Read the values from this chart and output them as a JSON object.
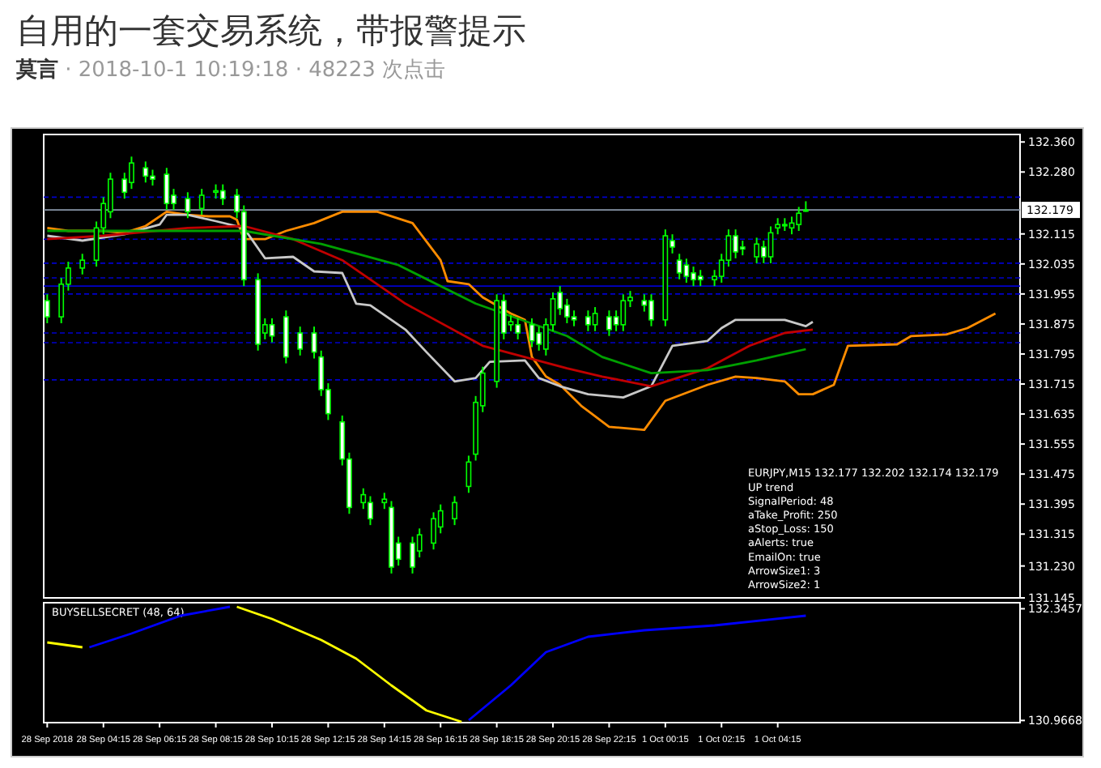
{
  "chart_data": [
    {
      "type": "candlestick",
      "title": "自用的一套交易系统，带报警提示",
      "subtitle": "**莫言** · 2018-10-1 10:19:18 · 48223 次点击",
      "color": "#00ff00",
      "tick_labels": "y",
      "annotations": [
        "EURJPY,M15  132.177 132.202 132.174 132.179",
        "UP trend",
        "SignalPeriod: 48",
        "aTake_Profit: 250",
        "aStop_Loss: 150",
        "aAlerts: true",
        "EmailOn: true",
        "ArrowSize1: 3",
        "ArrowSize2: 1"
      ],
      "ylim": [
        131.145,
        132.38
      ],
      "yticks": [
        {
          "value": 132.36,
          "label": "132.360"
        },
        {
          "value": 132.28,
          "label": "132.280"
        },
        {
          "value": 132.115,
          "label": "132.115"
        },
        {
          "value": 132.035,
          "label": "132.035"
        },
        {
          "value": 131.955,
          "label": "131.955"
        },
        {
          "value": 131.875,
          "label": "131.875"
        },
        {
          "value": 131.795,
          "label": "131.795"
        },
        {
          "value": 131.715,
          "label": "131.715"
        },
        {
          "value": 131.635,
          "label": "131.635"
        },
        {
          "value": 131.555,
          "label": "131.555"
        },
        {
          "value": 131.475,
          "label": "131.475"
        },
        {
          "value": 131.395,
          "label": "131.395"
        },
        {
          "value": 131.315,
          "label": "131.315"
        },
        {
          "value": 131.23,
          "label": "131.230"
        },
        {
          "value": 131.145,
          "label": "131.145"
        }
      ],
      "categories": [
        null,
        null,
        null,
        null,
        null,
        null,
        null,
        null,
        null,
        null,
        null,
        null,
        null,
        null,
        null,
        null,
        null,
        null,
        null,
        null,
        null,
        null,
        null,
        null,
        null,
        null,
        null,
        null,
        null,
        null,
        null,
        null,
        null,
        null,
        null,
        null,
        null,
        null,
        null,
        null,
        null,
        null,
        null,
        null,
        null,
        null,
        null,
        null,
        null,
        null,
        null,
        null,
        null,
        null,
        null,
        null,
        null,
        null,
        null,
        null,
        null,
        null,
        null,
        null,
        null,
        null,
        null,
        null,
        null,
        null,
        null,
        null,
        null,
        null,
        null,
        null,
        null,
        null,
        null,
        null,
        null,
        null,
        null,
        null,
        null,
        null,
        null,
        null,
        null,
        null,
        null,
        null,
        null,
        null,
        null,
        null,
        null,
        null,
        null,
        null,
        null,
        null,
        null,
        null,
        null,
        null,
        null,
        null,
        null,
        null,
        null,
        null,
        null,
        null,
        null,
        null,
        null,
        null,
        null,
        null,
        null,
        null,
        null,
        null,
        null,
        null,
        null,
        null,
        null,
        null,
        null,
        null,
        null,
        null,
        null,
        null,
        null,
        null,
        null
      ],
      "ohlc": [
        [
          131.937,
          131.954,
          131.877,
          131.894
        ],
        null,
        [
          131.894,
          131.998,
          131.877,
          131.981
        ],
        [
          131.981,
          132.041,
          131.964,
          132.024
        ],
        null,
        [
          132.024,
          132.062,
          132.007,
          132.045
        ],
        null,
        [
          132.045,
          132.148,
          132.028,
          132.131
        ],
        [
          132.131,
          132.213,
          132.114,
          132.196
        ],
        [
          132.174,
          132.278,
          132.157,
          132.261
        ],
        null,
        [
          132.261,
          132.278,
          132.209,
          132.226
        ],
        [
          132.252,
          132.321,
          132.235,
          132.304
        ],
        null,
        [
          132.291,
          132.308,
          132.252,
          132.269
        ],
        [
          132.269,
          132.286,
          132.244,
          132.261
        ],
        null,
        [
          132.274,
          132.291,
          132.179,
          132.196
        ],
        [
          132.218,
          132.235,
          132.179,
          132.196
        ],
        null,
        [
          132.209,
          132.226,
          132.157,
          132.174
        ],
        null,
        [
          132.183,
          132.235,
          132.166,
          132.218
        ],
        null,
        [
          132.226,
          132.247,
          132.209,
          132.23
        ],
        [
          132.23,
          132.247,
          132.192,
          132.209
        ],
        null,
        [
          132.218,
          132.235,
          132.157,
          132.174
        ],
        [
          132.174,
          132.191,
          131.976,
          131.993
        ],
        null,
        [
          131.993,
          132.01,
          131.804,
          131.821
        ],
        [
          131.851,
          131.89,
          131.834,
          131.873
        ],
        [
          131.873,
          131.89,
          131.826,
          131.843
        ],
        null,
        [
          131.894,
          131.911,
          131.77,
          131.787
        ],
        null,
        [
          131.851,
          131.868,
          131.791,
          131.808
        ],
        null,
        [
          131.851,
          131.868,
          131.783,
          131.8
        ],
        [
          131.787,
          131.804,
          131.683,
          131.7
        ],
        [
          131.7,
          131.717,
          131.619,
          131.636
        ],
        null,
        [
          131.614,
          131.631,
          131.498,
          131.515
        ],
        [
          131.515,
          131.532,
          131.369,
          131.386
        ],
        null,
        [
          131.399,
          131.437,
          131.382,
          131.42
        ],
        [
          131.399,
          131.416,
          131.339,
          131.356
        ],
        null,
        [
          131.399,
          131.425,
          131.382,
          131.408
        ],
        [
          131.386,
          131.403,
          131.21,
          131.227
        ],
        [
          131.291,
          131.308,
          131.231,
          131.248
        ],
        null,
        [
          131.291,
          131.308,
          131.21,
          131.227
        ],
        [
          131.27,
          131.33,
          131.253,
          131.313
        ],
        null,
        [
          131.291,
          131.373,
          131.274,
          131.356
        ],
        [
          131.334,
          131.394,
          131.317,
          131.377
        ],
        null,
        [
          131.356,
          131.416,
          131.339,
          131.399
        ],
        null,
        [
          131.442,
          131.524,
          131.425,
          131.507
        ],
        [
          131.528,
          131.683,
          131.511,
          131.666
        ],
        [
          131.657,
          131.761,
          131.64,
          131.744
        ],
        null,
        [
          131.722,
          131.954,
          131.705,
          131.937
        ],
        [
          131.937,
          131.954,
          131.834,
          131.851
        ],
        [
          131.873,
          131.898,
          131.856,
          131.881
        ],
        [
          131.873,
          131.89,
          131.834,
          131.851
        ],
        null,
        [
          131.873,
          131.89,
          131.813,
          131.83
        ],
        [
          131.851,
          131.868,
          131.804,
          131.821
        ],
        [
          131.808,
          131.89,
          131.791,
          131.873
        ],
        [
          131.873,
          131.959,
          131.856,
          131.942
        ],
        [
          131.959,
          131.976,
          131.899,
          131.916
        ],
        [
          131.925,
          131.942,
          131.877,
          131.894
        ],
        [
          131.894,
          131.911,
          131.869,
          131.886
        ],
        null,
        [
          131.894,
          131.911,
          131.856,
          131.873
        ],
        [
          131.873,
          131.92,
          131.856,
          131.903
        ],
        null,
        [
          131.894,
          131.911,
          131.843,
          131.86
        ],
        [
          131.894,
          131.911,
          131.856,
          131.873
        ],
        [
          131.873,
          131.954,
          131.856,
          131.937
        ],
        [
          131.937,
          131.963,
          131.92,
          131.946
        ],
        null,
        [
          131.937,
          131.954,
          131.908,
          131.925
        ],
        [
          131.937,
          131.954,
          131.869,
          131.886
        ],
        null,
        [
          131.886,
          132.127,
          131.869,
          132.11
        ],
        [
          132.097,
          132.114,
          132.063,
          132.08
        ],
        [
          132.045,
          132.062,
          131.994,
          132.011
        ],
        [
          132.032,
          132.049,
          131.985,
          132.002
        ],
        [
          132.011,
          132.028,
          131.976,
          131.993
        ],
        [
          132.002,
          132.019,
          131.976,
          131.993
        ],
        null,
        [
          131.993,
          132.019,
          131.976,
          132.002
        ],
        [
          132.002,
          132.062,
          131.985,
          132.045
        ],
        [
          132.045,
          132.127,
          132.028,
          132.11
        ],
        [
          132.11,
          132.127,
          132.05,
          132.067
        ],
        [
          132.08,
          132.097,
          132.058,
          132.075
        ],
        null,
        [
          132.054,
          132.105,
          132.037,
          132.088
        ],
        [
          132.08,
          132.097,
          132.037,
          132.054
        ],
        [
          132.054,
          132.135,
          132.037,
          132.118
        ],
        [
          132.131,
          132.157,
          132.114,
          132.14
        ],
        [
          132.14,
          132.157,
          132.123,
          132.14
        ],
        [
          132.131,
          132.161,
          132.114,
          132.144
        ],
        [
          132.14,
          132.187,
          132.123,
          132.17
        ],
        [
          132.177,
          132.202,
          132.174,
          132.179
        ],
        null,
        null,
        null,
        null,
        null,
        null,
        null,
        null,
        null,
        null,
        null,
        null,
        null,
        null,
        null,
        null,
        null,
        null,
        null,
        null,
        null,
        null,
        null,
        null,
        null,
        null,
        null,
        null,
        null,
        null
      ],
      "series": [
        {
          "type": "line",
          "color": "#ff8c00",
          "values": [
            132.131,
            null,
            null,
            132.123,
            null,
            null,
            null,
            null,
            132.123,
            null,
            null,
            132.118,
            null,
            null,
            132.136,
            null,
            null,
            132.174,
            null,
            null,
            132.166,
            null,
            null,
            132.162,
            null,
            null,
            132.162,
            132.153,
            132.101,
            null,
            null,
            132.101,
            null,
            null,
            132.123,
            null,
            null,
            null,
            132.144,
            null,
            null,
            null,
            132.174,
            null,
            null,
            null,
            null,
            132.174,
            null,
            null,
            null,
            null,
            132.144,
            null,
            null,
            null,
            132.045,
            131.989,
            null,
            null,
            131.981,
            null,
            131.946,
            null,
            null,
            null,
            131.903,
            null,
            131.886,
            131.787,
            null,
            131.735,
            null,
            131.713,
            null,
            null,
            131.657,
            null,
            null,
            null,
            131.601,
            null,
            null,
            null,
            null,
            131.593,
            null,
            null,
            131.67,
            null,
            null,
            null,
            null,
            null,
            131.713,
            null,
            null,
            null,
            131.735,
            null,
            null,
            131.731,
            null,
            null,
            null,
            131.722,
            null,
            131.688,
            null,
            131.688,
            null,
            null,
            131.713,
            null,
            131.817,
            null,
            null,
            null,
            null,
            null,
            null,
            131.821,
            null,
            131.843,
            null,
            null,
            null,
            null,
            131.847,
            null,
            null,
            131.864,
            null,
            null,
            null,
            131.903,
            null,
            null,
            null
          ]
        },
        {
          "type": "line",
          "color": "#c8c8c8",
          "values": [
            132.11,
            null,
            null,
            null,
            null,
            132.097,
            null,
            null,
            null,
            null,
            null,
            132.114,
            null,
            null,
            null,
            null,
            132.14,
            132.166,
            null,
            null,
            132.166,
            null,
            null,
            null,
            132.149,
            null,
            null,
            null,
            132.131,
            null,
            null,
            132.05,
            null,
            null,
            null,
            132.054,
            null,
            null,
            132.015,
            null,
            null,
            null,
            132.011,
            null,
            131.929,
            null,
            131.925,
            null,
            null,
            null,
            null,
            131.86,
            null,
            null,
            131.8,
            null,
            null,
            null,
            131.722,
            null,
            null,
            131.731,
            null,
            131.774,
            null,
            null,
            null,
            null,
            131.778,
            null,
            131.731,
            null,
            null,
            131.709,
            null,
            null,
            null,
            131.688,
            null,
            null,
            null,
            null,
            131.679,
            null,
            null,
            null,
            131.709,
            null,
            null,
            131.817,
            null,
            null,
            null,
            null,
            131.83,
            null,
            131.864,
            null,
            131.886,
            null,
            null,
            null,
            null,
            null,
            null,
            131.886,
            null,
            null,
            131.869,
            131.881,
            null,
            null,
            null,
            null,
            null,
            null,
            null,
            null,
            null,
            null,
            null,
            null,
            null,
            null,
            null,
            null,
            null,
            null,
            null,
            null,
            null,
            null,
            null,
            null,
            null,
            null,
            null,
            null,
            null
          ]
        },
        {
          "type": "line",
          "color": "#c00000",
          "values": [
            132.101,
            null,
            null,
            null,
            null,
            null,
            null,
            null,
            132.11,
            null,
            null,
            null,
            null,
            null,
            null,
            null,
            null,
            null,
            null,
            null,
            132.131,
            null,
            null,
            null,
            null,
            null,
            null,
            null,
            132.136,
            null,
            null,
            null,
            null,
            null,
            null,
            132.101,
            null,
            null,
            null,
            null,
            null,
            null,
            132.045,
            null,
            null,
            null,
            null,
            null,
            null,
            null,
            null,
            131.929,
            null,
            null,
            null,
            null,
            null,
            null,
            null,
            null,
            null,
            null,
            131.817,
            null,
            null,
            null,
            null,
            null,
            null,
            null,
            null,
            null,
            null,
            null,
            131.757,
            null,
            null,
            null,
            null,
            131.735,
            null,
            null,
            null,
            null,
            null,
            null,
            131.709,
            null,
            null,
            null,
            null,
            null,
            null,
            null,
            131.757,
            null,
            null,
            null,
            null,
            null,
            131.817,
            null,
            null,
            null,
            null,
            131.851,
            null,
            null,
            null,
            131.86,
            null,
            null,
            null,
            null,
            null,
            null,
            null,
            null,
            null,
            null,
            null,
            null,
            null,
            null,
            null,
            null,
            null,
            null,
            null,
            null,
            null,
            null,
            null,
            null,
            null,
            null,
            null,
            null,
            null
          ]
        },
        {
          "type": "line",
          "color": "#00a000",
          "values": [
            132.123,
            null,
            null,
            null,
            null,
            null,
            null,
            null,
            null,
            null,
            null,
            null,
            null,
            132.123,
            null,
            null,
            null,
            null,
            null,
            null,
            null,
            null,
            null,
            null,
            null,
            null,
            null,
            null,
            132.123,
            null,
            null,
            null,
            null,
            null,
            null,
            null,
            null,
            null,
            null,
            132.088,
            null,
            null,
            null,
            null,
            null,
            null,
            null,
            null,
            null,
            null,
            132.032,
            null,
            null,
            null,
            null,
            null,
            null,
            null,
            null,
            null,
            null,
            131.929,
            null,
            null,
            null,
            null,
            null,
            null,
            null,
            null,
            null,
            null,
            null,
            null,
            131.843,
            null,
            null,
            null,
            null,
            131.787,
            null,
            null,
            null,
            null,
            null,
            null,
            131.744,
            null,
            null,
            null,
            null,
            null,
            null,
            null,
            131.752,
            null,
            null,
            null,
            null,
            null,
            null,
            131.778,
            null,
            null,
            null,
            null,
            null,
            null,
            131.808,
            null,
            null,
            null,
            null,
            null,
            null,
            null,
            null,
            null,
            null,
            null,
            null,
            null,
            null,
            null,
            null,
            null,
            null,
            null,
            null,
            null,
            null,
            null,
            null,
            null,
            null,
            null,
            null,
            null,
            null
          ]
        }
      ],
      "ref_lines": [
        {
          "axis": "y",
          "value": 132.179,
          "label": "132.179",
          "color": "#8896a8",
          "line_style": "solid"
        },
        {
          "axis": "y",
          "value": 132.213,
          "color": "#0000cc",
          "line_style": "dashed"
        },
        {
          "axis": "y",
          "value": 132.101,
          "color": "#0000cc",
          "line_style": "dashed"
        },
        {
          "axis": "y",
          "value": 132.037,
          "color": "#0000cc",
          "line_style": "dashed"
        },
        {
          "axis": "y",
          "value": 131.998,
          "color": "#0000cc",
          "line_style": "dashed"
        },
        {
          "axis": "y",
          "value": 131.976,
          "color": "#0000cc",
          "line_style": "solid"
        },
        {
          "axis": "y",
          "value": 131.955,
          "color": "#0000cc",
          "line_style": "dashed"
        },
        {
          "axis": "y",
          "value": 131.851,
          "color": "#0000cc",
          "line_style": "dashed"
        },
        {
          "axis": "y",
          "value": 131.825,
          "color": "#0000cc",
          "line_style": "dashed"
        },
        {
          "axis": "y",
          "value": 131.726,
          "color": "#0000cc",
          "line_style": "dashed"
        }
      ]
    },
    {
      "type": "line",
      "annotations": [
        "BUYSELLSECRET (48, 64)"
      ],
      "ylim": [
        130.94,
        132.42
      ],
      "yticks": [
        132.3457,
        130.9668
      ],
      "categories": [
        "28 Sep 2018",
        null,
        null,
        null,
        null,
        null,
        null,
        null,
        "28 Sep 04:15",
        null,
        null,
        null,
        null,
        null,
        null,
        null,
        "28 Sep 06:15",
        null,
        null,
        null,
        null,
        null,
        null,
        null,
        "28 Sep 08:15",
        null,
        null,
        null,
        null,
        null,
        null,
        null,
        "28 Sep 10:15",
        null,
        null,
        null,
        null,
        null,
        null,
        null,
        "28 Sep 12:15",
        null,
        null,
        null,
        null,
        null,
        null,
        null,
        "28 Sep 14:15",
        null,
        null,
        null,
        null,
        null,
        null,
        null,
        "28 Sep 16:15",
        null,
        null,
        null,
        null,
        null,
        null,
        null,
        "28 Sep 18:15",
        null,
        null,
        null,
        null,
        null,
        null,
        null,
        "28 Sep 20:15",
        null,
        null,
        null,
        null,
        null,
        null,
        null,
        "28 Sep 22:15",
        null,
        null,
        null,
        null,
        null,
        null,
        null,
        "1 Oct 00:15",
        null,
        null,
        null,
        null,
        null,
        null,
        null,
        "1 Oct 02:15",
        null,
        null,
        null,
        null,
        null,
        null,
        null,
        "1 Oct 04:15",
        null,
        null,
        null,
        null,
        null,
        null,
        null,
        null,
        null,
        null,
        null,
        null,
        null,
        null,
        null,
        null,
        null,
        null,
        null,
        null,
        null,
        null,
        null,
        null,
        null,
        null,
        null,
        null,
        null,
        null,
        null,
        null,
        null,
        null
      ],
      "series": [
        {
          "color": "#ffff00",
          "values": [
            131.93,
            null,
            null,
            null,
            null,
            131.87,
            null,
            null,
            null,
            null,
            null,
            null,
            null,
            null,
            null,
            null,
            null,
            null,
            null,
            null,
            null,
            null,
            null,
            null,
            null,
            null,
            null,
            null,
            null,
            null,
            null,
            null,
            null,
            null,
            null,
            null,
            null,
            null,
            null,
            null,
            null,
            null,
            null,
            null,
            null,
            null,
            null,
            null,
            null,
            null,
            null,
            null,
            null,
            null,
            null,
            null,
            null,
            null,
            null,
            null,
            null,
            null,
            null,
            null,
            null,
            null,
            null,
            null,
            null,
            null,
            null,
            null,
            null,
            null,
            null,
            null,
            null,
            null,
            null,
            null,
            null,
            null,
            null,
            null,
            null,
            null,
            null,
            null,
            null,
            null,
            null,
            null,
            null,
            null,
            null,
            null,
            null,
            null,
            null,
            null,
            null,
            null,
            null,
            null,
            null,
            null,
            null,
            null,
            null,
            null,
            null,
            null,
            null,
            null,
            null,
            null,
            null,
            null,
            null,
            null,
            null,
            null,
            null,
            null,
            null,
            null,
            null,
            null,
            null,
            null,
            null,
            null,
            null,
            null,
            null,
            null,
            null,
            null,
            null
          ]
        },
        {
          "color": "#0000ff",
          "values": [
            null,
            null,
            null,
            null,
            null,
            null,
            131.87,
            null,
            null,
            null,
            null,
            null,
            132.04,
            null,
            null,
            null,
            null,
            null,
            null,
            132.26,
            null,
            null,
            null,
            null,
            null,
            null,
            132.37,
            null,
            null,
            null,
            null,
            null,
            null,
            null,
            null,
            null,
            null,
            null,
            null,
            null,
            null,
            null,
            null,
            null,
            null,
            null,
            null,
            null,
            null,
            null,
            null,
            null,
            null,
            null,
            null,
            null,
            null,
            null,
            null,
            null,
            null,
            null,
            null,
            null,
            null,
            null,
            null,
            null,
            null,
            null,
            null,
            null,
            null,
            null,
            null,
            null,
            null,
            null,
            null,
            null,
            null,
            null,
            null,
            null,
            null,
            null,
            null,
            null,
            null,
            null,
            null,
            null,
            null,
            null,
            null,
            null,
            null,
            null,
            null,
            null,
            null,
            null,
            null,
            null,
            null,
            null,
            null,
            null,
            null,
            null,
            null,
            null,
            null,
            null,
            null,
            null,
            null,
            null,
            null,
            null,
            null,
            null,
            null,
            null,
            null,
            null,
            null,
            null,
            null,
            null,
            null,
            null,
            null,
            null,
            null,
            null,
            null,
            null,
            null
          ]
        },
        {
          "color": "#ffff00",
          "values": [
            null,
            null,
            null,
            null,
            null,
            null,
            null,
            null,
            null,
            null,
            null,
            null,
            null,
            null,
            null,
            null,
            null,
            null,
            null,
            null,
            null,
            null,
            null,
            null,
            null,
            null,
            null,
            132.37,
            null,
            null,
            null,
            null,
            132.22,
            null,
            null,
            null,
            null,
            null,
            null,
            131.96,
            null,
            null,
            null,
            null,
            131.73,
            null,
            null,
            null,
            null,
            131.4,
            null,
            null,
            null,
            null,
            131.09,
            null,
            null,
            null,
            null,
            130.95,
            null,
            null,
            null,
            null,
            null,
            null,
            null,
            null,
            null,
            null,
            null,
            null,
            null,
            null,
            null,
            null,
            null,
            null,
            null,
            null,
            null,
            null,
            null,
            null,
            null,
            null,
            null,
            null,
            null,
            null,
            null,
            null,
            null,
            null,
            null,
            null,
            null,
            null,
            null,
            null,
            null,
            null,
            null,
            null,
            null,
            null,
            null,
            null,
            null,
            null,
            null,
            null,
            null,
            null,
            null,
            null,
            null,
            null,
            null,
            null,
            null,
            null,
            null,
            null,
            null,
            null,
            null,
            null,
            null,
            null,
            null,
            null,
            null,
            null,
            null,
            null,
            null,
            null,
            null
          ]
        },
        {
          "color": "#0000ff",
          "values": [
            null,
            null,
            null,
            null,
            null,
            null,
            null,
            null,
            null,
            null,
            null,
            null,
            null,
            null,
            null,
            null,
            null,
            null,
            null,
            null,
            null,
            null,
            null,
            null,
            null,
            null,
            null,
            null,
            null,
            null,
            null,
            null,
            null,
            null,
            null,
            null,
            null,
            null,
            null,
            null,
            null,
            null,
            null,
            null,
            null,
            null,
            null,
            null,
            null,
            null,
            null,
            null,
            null,
            null,
            null,
            null,
            null,
            null,
            null,
            null,
            130.97,
            null,
            null,
            null,
            null,
            null,
            131.4,
            null,
            null,
            null,
            null,
            131.81,
            null,
            null,
            null,
            null,
            null,
            132.0,
            null,
            null,
            null,
            null,
            null,
            null,
            null,
            132.08,
            null,
            null,
            null,
            null,
            null,
            null,
            null,
            null,
            null,
            132.14,
            null,
            null,
            null,
            null,
            null,
            null,
            null,
            null,
            null,
            null,
            null,
            null,
            132.26,
            null,
            null,
            null,
            null,
            null,
            null,
            null,
            null,
            null,
            null,
            null,
            null,
            null,
            null,
            null,
            null,
            null,
            null,
            null,
            null,
            null,
            null,
            null,
            null,
            null,
            null,
            null,
            null,
            null,
            null
          ]
        }
      ]
    }
  ]
}
